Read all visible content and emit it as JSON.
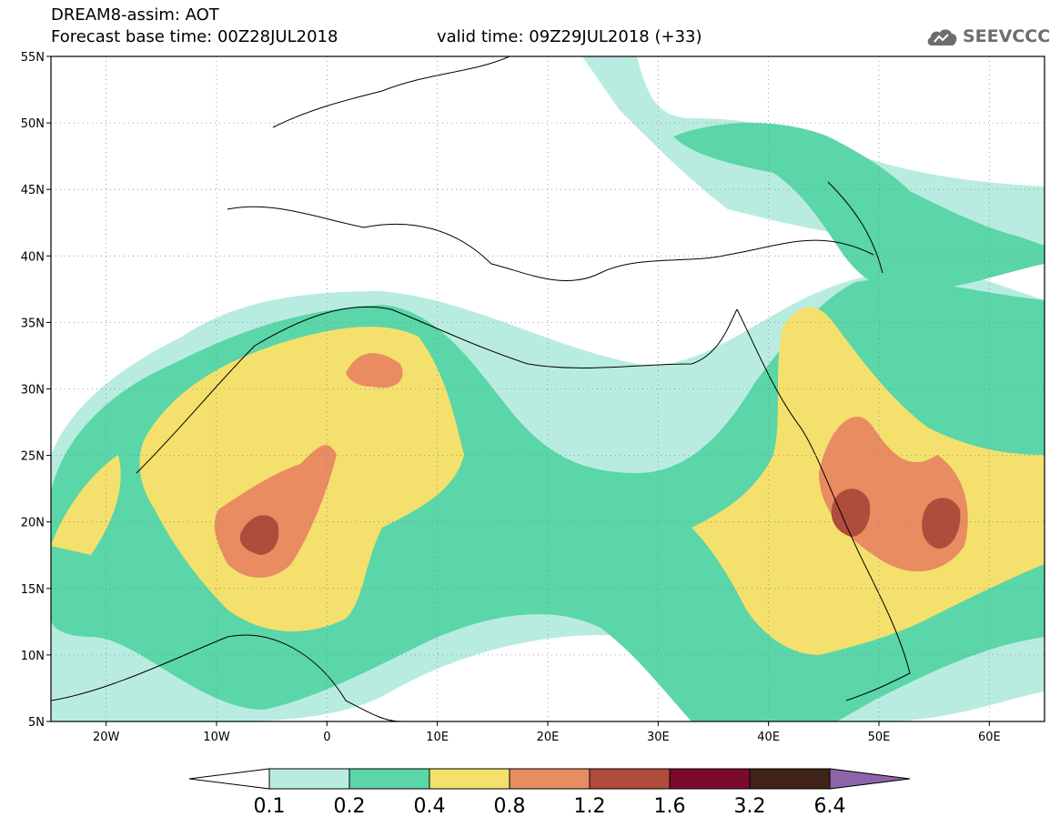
{
  "header": {
    "title": "DREAM8-assim: AOT",
    "base_time": "Forecast base time: 00Z28JUL2018",
    "valid_time": "valid time: 09Z29JUL2018 (+33)",
    "logo_text": "SEEVCCC"
  },
  "map": {
    "projection": "lat-lon",
    "lon_range": [
      -25,
      65
    ],
    "lat_range": [
      5,
      55
    ],
    "lat_labels": [
      "5N",
      "10N",
      "15N",
      "20N",
      "25N",
      "30N",
      "35N",
      "40N",
      "45N",
      "50N",
      "55N"
    ],
    "lon_labels": [
      "20W",
      "10W",
      "0",
      "10E",
      "20E",
      "30E",
      "40E",
      "50E",
      "60E"
    ],
    "gridlines": "dotted"
  },
  "colorbar": {
    "levels": [
      "0.1",
      "0.2",
      "0.4",
      "0.8",
      "1.2",
      "1.6",
      "3.2",
      "6.4"
    ],
    "colors": [
      "#ffffff",
      "#b9ece0",
      "#5ad6a8",
      "#f4e06c",
      "#e98c62",
      "#b04c3c",
      "#7a0b2c",
      "#3f2417",
      "#8c64a8"
    ],
    "under_color": "#ffffff",
    "over_color": "#8c64a8"
  }
}
